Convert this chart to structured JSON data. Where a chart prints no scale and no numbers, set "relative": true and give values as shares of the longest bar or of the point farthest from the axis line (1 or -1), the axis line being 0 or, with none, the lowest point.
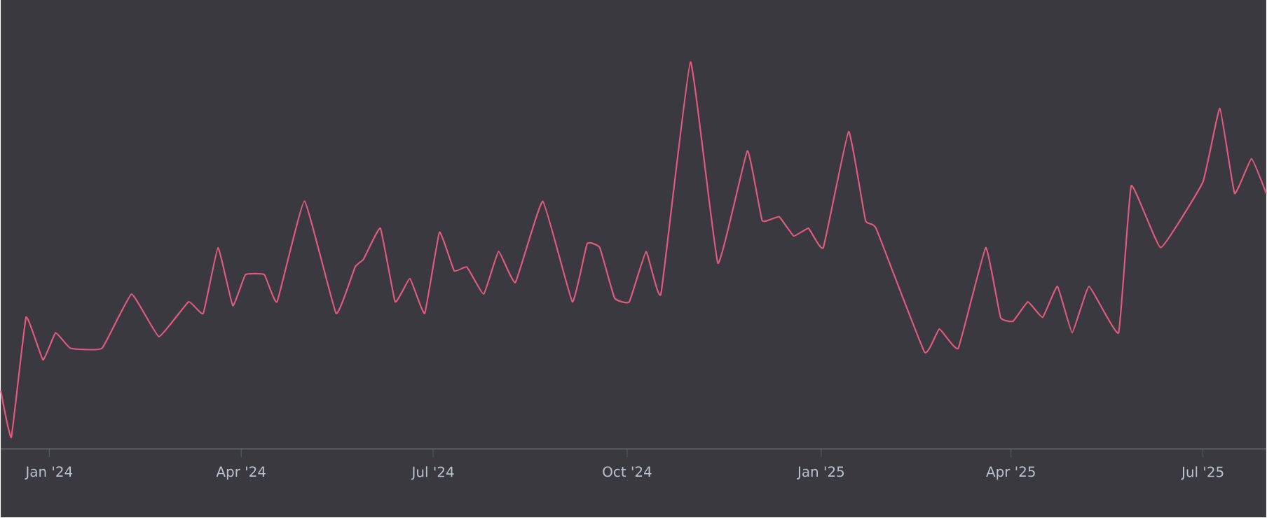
{
  "chart_data": {
    "type": "line",
    "relative": true,
    "color": "#e05a80",
    "marker": "none",
    "line_style": "solid",
    "grid": false,
    "xlim": [
      "2023-12-09",
      "2025-07-31"
    ],
    "xticks": [
      {
        "value": "2024-01-01",
        "label": "Jan '24"
      },
      {
        "value": "2024-04-01",
        "label": "Apr '24"
      },
      {
        "value": "2024-07-01",
        "label": "Jul '24"
      },
      {
        "value": "2024-10-01",
        "label": "Oct '24"
      },
      {
        "value": "2025-01-01",
        "label": "Jan '25"
      },
      {
        "value": "2025-04-01",
        "label": "Apr '25"
      },
      {
        "value": "2025-07-01",
        "label": "Jul '25"
      }
    ],
    "x": [
      "2023-12-09",
      "2023-12-14",
      "2023-12-21",
      "2023-12-29",
      "2024-01-04",
      "2024-01-11",
      "2024-01-26",
      "2024-02-09",
      "2024-02-22",
      "2024-03-07",
      "2024-03-14",
      "2024-03-21",
      "2024-03-28",
      "2024-04-03",
      "2024-04-12",
      "2024-04-18",
      "2024-05-01",
      "2024-05-16",
      "2024-05-25",
      "2024-05-29",
      "2024-06-06",
      "2024-06-13",
      "2024-06-20",
      "2024-06-27",
      "2024-07-04",
      "2024-07-11",
      "2024-07-17",
      "2024-07-25",
      "2024-08-01",
      "2024-08-09",
      "2024-08-22",
      "2024-09-05",
      "2024-09-12",
      "2024-09-18",
      "2024-09-25",
      "2024-10-02",
      "2024-10-10",
      "2024-10-17",
      "2024-10-31",
      "2024-11-13",
      "2024-11-27",
      "2024-12-04",
      "2024-12-12",
      "2024-12-19",
      "2024-12-26",
      "2025-01-02",
      "2025-01-14",
      "2025-01-22",
      "2025-01-27",
      "2025-02-19",
      "2025-02-26",
      "2025-03-07",
      "2025-03-20",
      "2025-03-27",
      "2025-04-02",
      "2025-04-09",
      "2025-04-16",
      "2025-04-23",
      "2025-04-30",
      "2025-05-08",
      "2025-05-22",
      "2025-05-28",
      "2025-06-11",
      "2025-07-01",
      "2025-07-09",
      "2025-07-16",
      "2025-07-24",
      "2025-07-31"
    ],
    "values": [
      0.15,
      0.03,
      0.34,
      0.23,
      0.3,
      0.26,
      0.26,
      0.4,
      0.29,
      0.38,
      0.35,
      0.52,
      0.37,
      0.45,
      0.45,
      0.38,
      0.64,
      0.35,
      0.47,
      0.49,
      0.57,
      0.38,
      0.44,
      0.35,
      0.56,
      0.46,
      0.47,
      0.4,
      0.51,
      0.43,
      0.64,
      0.38,
      0.53,
      0.52,
      0.39,
      0.38,
      0.51,
      0.4,
      1.0,
      0.48,
      0.77,
      0.59,
      0.6,
      0.55,
      0.57,
      0.52,
      0.82,
      0.59,
      0.57,
      0.25,
      0.31,
      0.26,
      0.52,
      0.34,
      0.33,
      0.38,
      0.34,
      0.42,
      0.3,
      0.42,
      0.3,
      0.68,
      0.52,
      0.69,
      0.88,
      0.66,
      0.75,
      0.66
    ]
  }
}
